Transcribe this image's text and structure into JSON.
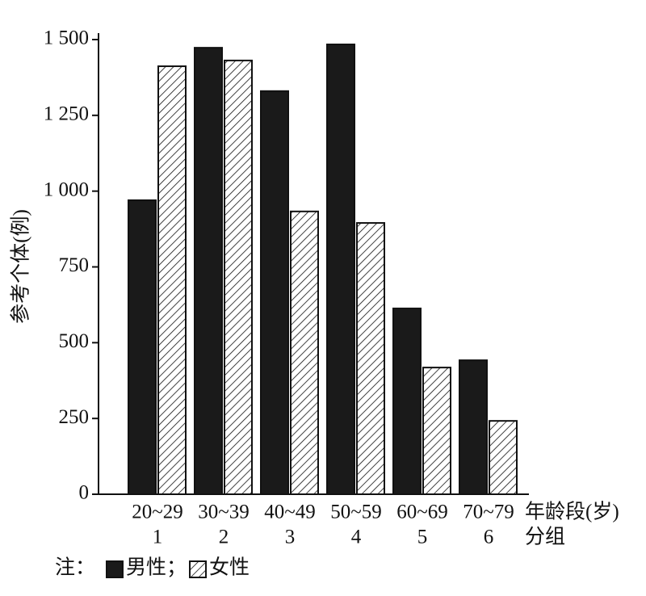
{
  "chart_data": {
    "type": "bar",
    "y_label": "参考个体(例)",
    "categories": [
      "20~29",
      "30~39",
      "40~49",
      "50~59",
      "60~69",
      "70~79"
    ],
    "groups": [
      "1",
      "2",
      "3",
      "4",
      "5",
      "6"
    ],
    "x_label": "年龄段(岁)",
    "x_label_2": "分组",
    "legend_note": "注：",
    "legend_separator": "；",
    "series": [
      {
        "name": "男性",
        "color": "#1a1a1a",
        "pattern": "solid",
        "values": [
          970,
          1473,
          1330,
          1484,
          613,
          442
        ]
      },
      {
        "name": "女性",
        "color": "#ffffff",
        "pattern": "hatch",
        "values": [
          1412,
          1431,
          933,
          895,
          418,
          242
        ]
      }
    ],
    "ylim": [
      0,
      1500
    ],
    "yticks": [
      0,
      250,
      500,
      750,
      {
        "value": 1000,
        "label": "1 000"
      },
      {
        "value": 1250,
        "label": "1 250"
      },
      {
        "value": 1500,
        "label": "1 500"
      }
    ]
  }
}
